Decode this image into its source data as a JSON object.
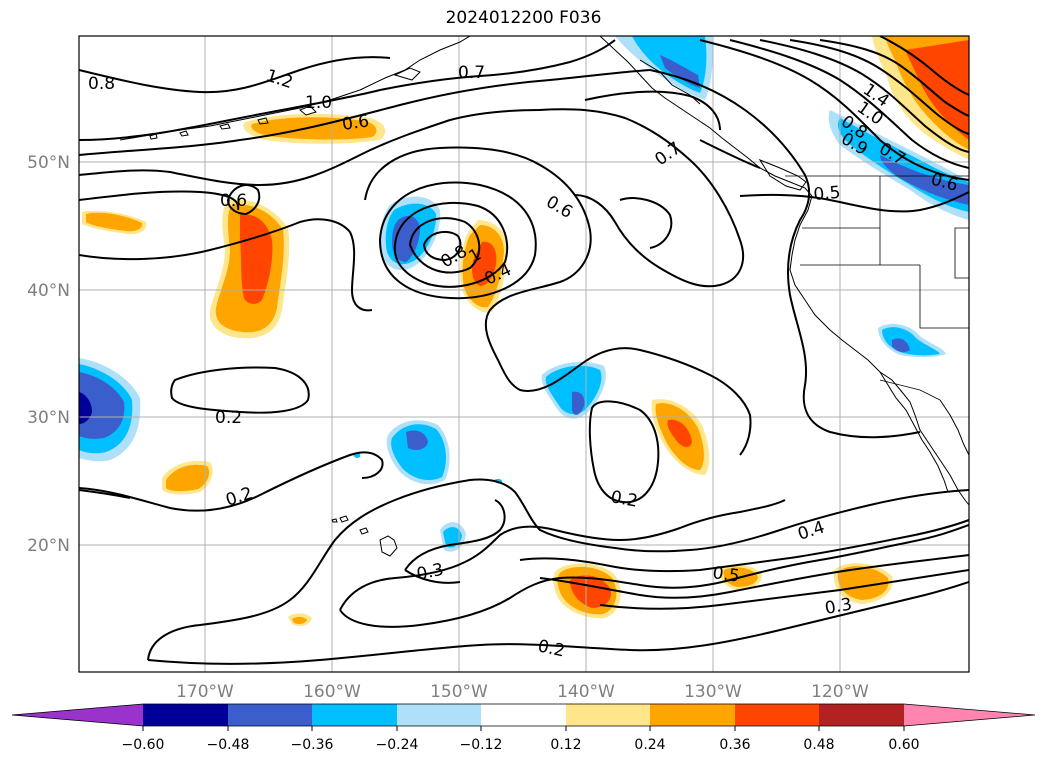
{
  "title": "2024012200 F036",
  "colors": {
    "purple": "#9933cc",
    "navy": "#000099",
    "royal": "#3a5fcd",
    "cyan": "#00bfff",
    "lightblue": "#aee0fa",
    "white": "#ffffff",
    "lightyellow": "#ffe68a",
    "orange": "#ffa500",
    "redorange": "#ff4500",
    "firebrick": "#b22222",
    "pink": "#ff85b0"
  },
  "lat_labels": [
    "50°N",
    "40°N",
    "30°N",
    "20°N"
  ],
  "lon_labels": [
    "170°W",
    "160°W",
    "150°W",
    "140°W",
    "130°W",
    "120°W"
  ],
  "colorbar": {
    "ticks": [
      "−0.60",
      "−0.48",
      "−0.36",
      "−0.24",
      "−0.12",
      "0.12",
      "0.24",
      "0.36",
      "0.48",
      "0.60"
    ]
  },
  "contour_labels": [
    "0.8",
    "1.2",
    "1.0",
    "0.7",
    "0.6",
    "0.6",
    "0.7",
    "0.6",
    "0.8",
    "1",
    "0.4",
    "0.2",
    "0.2",
    "0.2",
    "0.3",
    "0.2",
    "0.4",
    "0.5",
    "0.3",
    "1.4",
    "1.0",
    "0.8",
    "0.9",
    "0.7",
    "0.6",
    "0.5"
  ]
}
